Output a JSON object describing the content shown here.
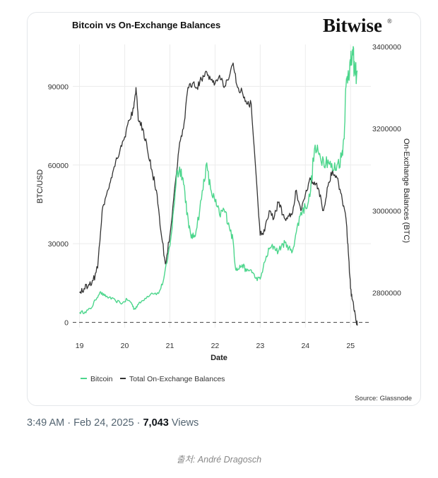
{
  "post": {
    "time": "3:49 AM",
    "date": "Feb 24, 2025",
    "separator": "·",
    "views_count": "7,043",
    "views_label": "Views"
  },
  "caption": "출처: André Dragosch",
  "chart_data": {
    "type": "line",
    "title": "Bitcoin vs On-Exchange Balances",
    "brand": "Bitwise",
    "brand_mark": "®",
    "xlabel": "Date",
    "ylabel_left": "BTC/USD",
    "ylabel_right": "On-Exchange Balances (BTC)",
    "x_ticks": [
      "19",
      "20",
      "21",
      "22",
      "23",
      "24",
      "25"
    ],
    "x_range": [
      2018.85,
      2025.45
    ],
    "y_left_ticks": [
      "0",
      "30000",
      "60000",
      "90000"
    ],
    "y_left_range": [
      -2000,
      106000
    ],
    "y_right_ticks": [
      "2800000",
      "3000000",
      "3200000",
      "3400000"
    ],
    "y_right_range": [
      2715000,
      3405000
    ],
    "legend": [
      {
        "name": "Bitcoin",
        "style": "solid",
        "color": "#4cd68c"
      },
      {
        "name": "Total On-Exchange Balances",
        "style": "dashed",
        "color": "#333333"
      }
    ],
    "source": "Source: Glassnode",
    "series": [
      {
        "name": "Bitcoin",
        "axis": "left",
        "color": "#4cd68c",
        "points": [
          [
            2019.0,
            3800
          ],
          [
            2019.12,
            4000
          ],
          [
            2019.25,
            5200
          ],
          [
            2019.35,
            8500
          ],
          [
            2019.45,
            11500
          ],
          [
            2019.55,
            10200
          ],
          [
            2019.65,
            9500
          ],
          [
            2019.8,
            8200
          ],
          [
            2019.95,
            7300
          ],
          [
            2020.05,
            8800
          ],
          [
            2020.15,
            7400
          ],
          [
            2020.21,
            5000
          ],
          [
            2020.3,
            6800
          ],
          [
            2020.45,
            9200
          ],
          [
            2020.6,
            11200
          ],
          [
            2020.75,
            11000
          ],
          [
            2020.85,
            15500
          ],
          [
            2020.95,
            24000
          ],
          [
            2021.05,
            36000
          ],
          [
            2021.15,
            57000
          ],
          [
            2021.25,
            58500
          ],
          [
            2021.33,
            50000
          ],
          [
            2021.42,
            36000
          ],
          [
            2021.5,
            32000
          ],
          [
            2021.58,
            35000
          ],
          [
            2021.7,
            47000
          ],
          [
            2021.8,
            60000
          ],
          [
            2021.9,
            51000
          ],
          [
            2022.0,
            46000
          ],
          [
            2022.1,
            41000
          ],
          [
            2022.2,
            43000
          ],
          [
            2022.3,
            38000
          ],
          [
            2022.4,
            31000
          ],
          [
            2022.45,
            21000
          ],
          [
            2022.5,
            20000
          ],
          [
            2022.6,
            22000
          ],
          [
            2022.7,
            19500
          ],
          [
            2022.8,
            20000
          ],
          [
            2022.9,
            16800
          ],
          [
            2023.0,
            16500
          ],
          [
            2023.1,
            23000
          ],
          [
            2023.2,
            28000
          ],
          [
            2023.3,
            29000
          ],
          [
            2023.4,
            27000
          ],
          [
            2023.5,
            30000
          ],
          [
            2023.6,
            29500
          ],
          [
            2023.7,
            26500
          ],
          [
            2023.8,
            34500
          ],
          [
            2023.9,
            42000
          ],
          [
            2024.0,
            44000
          ],
          [
            2024.1,
            48000
          ],
          [
            2024.2,
            66000
          ],
          [
            2024.3,
            64000
          ],
          [
            2024.4,
            62000
          ],
          [
            2024.5,
            62000
          ],
          [
            2024.6,
            58000
          ],
          [
            2024.7,
            60000
          ],
          [
            2024.8,
            63000
          ],
          [
            2024.85,
            70000
          ],
          [
            2024.9,
            90000
          ],
          [
            2024.95,
            96000
          ],
          [
            2025.0,
            98000
          ],
          [
            2025.05,
            102000
          ],
          [
            2025.1,
            95000
          ],
          [
            2025.15,
            96000
          ]
        ]
      },
      {
        "name": "Total On-Exchange Balances",
        "axis": "right",
        "color": "#333333",
        "points": [
          [
            2019.0,
            2800000
          ],
          [
            2019.1,
            2810000
          ],
          [
            2019.2,
            2820000
          ],
          [
            2019.3,
            2830000
          ],
          [
            2019.4,
            2860000
          ],
          [
            2019.5,
            3000000
          ],
          [
            2019.6,
            3040000
          ],
          [
            2019.7,
            3080000
          ],
          [
            2019.8,
            3120000
          ],
          [
            2019.9,
            3150000
          ],
          [
            2020.0,
            3180000
          ],
          [
            2020.1,
            3220000
          ],
          [
            2020.2,
            3250000
          ],
          [
            2020.25,
            3300000
          ],
          [
            2020.3,
            3220000
          ],
          [
            2020.4,
            3200000
          ],
          [
            2020.5,
            3150000
          ],
          [
            2020.6,
            3100000
          ],
          [
            2020.7,
            3050000
          ],
          [
            2020.8,
            2950000
          ],
          [
            2020.9,
            2870000
          ],
          [
            2021.0,
            2940000
          ],
          [
            2021.1,
            3050000
          ],
          [
            2021.2,
            3150000
          ],
          [
            2021.3,
            3200000
          ],
          [
            2021.4,
            3300000
          ],
          [
            2021.5,
            3310000
          ],
          [
            2021.6,
            3300000
          ],
          [
            2021.7,
            3320000
          ],
          [
            2021.8,
            3340000
          ],
          [
            2021.9,
            3320000
          ],
          [
            2022.0,
            3310000
          ],
          [
            2022.1,
            3330000
          ],
          [
            2022.2,
            3300000
          ],
          [
            2022.3,
            3320000
          ],
          [
            2022.4,
            3360000
          ],
          [
            2022.5,
            3300000
          ],
          [
            2022.6,
            3290000
          ],
          [
            2022.7,
            3260000
          ],
          [
            2022.8,
            3260000
          ],
          [
            2022.9,
            3100000
          ],
          [
            2023.0,
            2940000
          ],
          [
            2023.1,
            2950000
          ],
          [
            2023.2,
            3000000
          ],
          [
            2023.3,
            2980000
          ],
          [
            2023.4,
            3020000
          ],
          [
            2023.5,
            2990000
          ],
          [
            2023.6,
            2980000
          ],
          [
            2023.7,
            2990000
          ],
          [
            2023.8,
            3050000
          ],
          [
            2023.9,
            3000000
          ],
          [
            2024.0,
            3040000
          ],
          [
            2024.1,
            3080000
          ],
          [
            2024.2,
            3070000
          ],
          [
            2024.3,
            3050000
          ],
          [
            2024.4,
            3000000
          ],
          [
            2024.5,
            3060000
          ],
          [
            2024.6,
            3100000
          ],
          [
            2024.7,
            3080000
          ],
          [
            2024.8,
            3040000
          ],
          [
            2024.9,
            2980000
          ],
          [
            2024.95,
            2900000
          ],
          [
            2025.0,
            2810000
          ],
          [
            2025.05,
            2780000
          ],
          [
            2025.1,
            2750000
          ],
          [
            2025.15,
            2720000
          ]
        ]
      }
    ]
  }
}
